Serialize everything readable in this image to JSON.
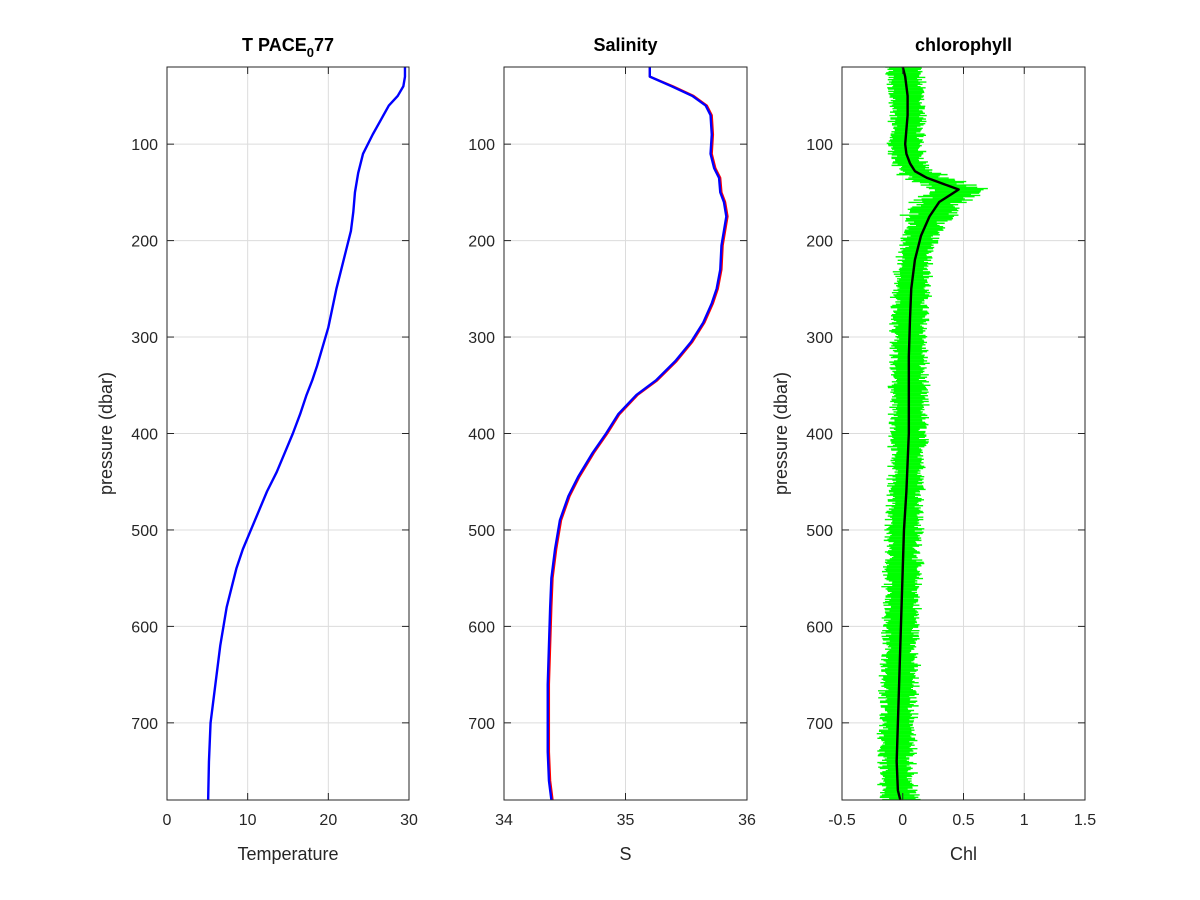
{
  "figure": {
    "background": "#ffffff"
  },
  "chart_data": [
    {
      "type": "line",
      "title": "T PACE",
      "title_subscript": "0",
      "title_suffix": "77",
      "xlabel": "Temperature",
      "ylabel": "pressure (dbar)",
      "xlim": [
        0,
        30
      ],
      "ylim": [
        780,
        20
      ],
      "y_reversed": true,
      "grid": true,
      "xticks": [
        0,
        10,
        20,
        30
      ],
      "xtick_labels": [
        "0",
        "10",
        "20",
        "30"
      ],
      "yticks": [
        100,
        200,
        300,
        400,
        500,
        600,
        700
      ],
      "ytick_labels": [
        "100",
        "200",
        "300",
        "400",
        "500",
        "600",
        "700"
      ],
      "series": [
        {
          "color": "#0000ff",
          "x": [
            29.5,
            29.5,
            29.3,
            28.6,
            27.5,
            26.5,
            25.5,
            24.3,
            23.7,
            23.3,
            23.1,
            22.8,
            22.2,
            21.6,
            21.0,
            20.5,
            20.0,
            19.3,
            18.6,
            18.0,
            17.3,
            16.5,
            15.6,
            14.6,
            13.6,
            12.4,
            11.4,
            10.4,
            9.4,
            8.6,
            8.0,
            7.4,
            7.0,
            6.6,
            6.3,
            6.0,
            5.7,
            5.4,
            5.2,
            5.1
          ],
          "y": [
            20,
            30,
            40,
            50,
            60,
            75,
            90,
            110,
            130,
            150,
            170,
            190,
            210,
            230,
            250,
            270,
            290,
            310,
            330,
            345,
            360,
            380,
            400,
            420,
            440,
            460,
            480,
            500,
            520,
            540,
            560,
            580,
            600,
            620,
            640,
            660,
            680,
            700,
            740,
            780
          ]
        }
      ]
    },
    {
      "type": "line",
      "title": "Salinity",
      "xlabel": "S",
      "ylabel": "",
      "xlim": [
        34,
        36
      ],
      "ylim": [
        780,
        20
      ],
      "y_reversed": true,
      "grid": true,
      "xticks": [
        34,
        35,
        36
      ],
      "xtick_labels": [
        "34",
        "35",
        "36"
      ],
      "yticks": [
        100,
        200,
        300,
        400,
        500,
        600,
        700
      ],
      "ytick_labels": [
        "100",
        "200",
        "300",
        "400",
        "500",
        "600",
        "700"
      ],
      "series": [
        {
          "color": "#ff0000",
          "x": [
            35.2,
            35.2,
            35.39,
            35.56,
            35.67,
            35.71,
            35.72,
            35.71,
            35.74,
            35.78,
            35.79,
            35.82,
            35.84,
            35.82,
            35.8,
            35.79,
            35.76,
            35.72,
            35.65,
            35.55,
            35.42,
            35.26,
            35.1,
            34.95,
            34.85,
            34.74,
            34.62,
            34.54,
            34.47,
            34.43,
            34.4,
            34.39,
            34.38,
            34.37,
            34.37,
            34.37,
            34.38,
            34.4
          ],
          "y": [
            20,
            30,
            40,
            50,
            60,
            70,
            90,
            110,
            125,
            135,
            150,
            160,
            175,
            190,
            205,
            230,
            250,
            265,
            285,
            305,
            325,
            345,
            360,
            380,
            400,
            420,
            445,
            465,
            490,
            520,
            550,
            580,
            620,
            660,
            700,
            730,
            760,
            780
          ]
        },
        {
          "color": "#0000ff",
          "x": [
            35.2,
            35.2,
            35.38,
            35.55,
            35.66,
            35.7,
            35.71,
            35.7,
            35.73,
            35.77,
            35.78,
            35.81,
            35.83,
            35.81,
            35.79,
            35.78,
            35.75,
            35.71,
            35.64,
            35.54,
            35.41,
            35.25,
            35.09,
            34.94,
            34.84,
            34.73,
            34.61,
            34.53,
            34.46,
            34.42,
            34.39,
            34.38,
            34.37,
            34.36,
            34.36,
            34.36,
            34.37,
            34.39
          ],
          "y": [
            20,
            30,
            40,
            50,
            60,
            70,
            90,
            110,
            125,
            135,
            150,
            160,
            175,
            190,
            205,
            230,
            250,
            265,
            285,
            305,
            325,
            345,
            360,
            380,
            400,
            420,
            445,
            465,
            490,
            520,
            550,
            580,
            620,
            660,
            700,
            730,
            760,
            780
          ]
        }
      ]
    },
    {
      "type": "line",
      "title": "chlorophyll",
      "xlabel": "Chl",
      "ylabel": "pressure (dbar)",
      "xlim": [
        -0.5,
        1.5
      ],
      "ylim": [
        780,
        20
      ],
      "y_reversed": true,
      "grid": true,
      "xticks": [
        -0.5,
        0,
        0.5,
        1,
        1.5
      ],
      "xtick_labels": [
        "-0.5",
        "0",
        "0.5",
        "1",
        "1.5"
      ],
      "yticks": [
        100,
        200,
        300,
        400,
        500,
        600,
        700
      ],
      "ytick_labels": [
        "100",
        "200",
        "300",
        "400",
        "500",
        "600",
        "700"
      ],
      "series": [
        {
          "color": "#00ff00",
          "x": [
            0.0,
            0.02,
            0.04,
            0.04,
            0.03,
            0.02,
            0.03,
            0.06,
            0.1,
            0.2,
            0.35,
            0.46,
            0.4,
            0.3,
            0.22,
            0.15,
            0.1,
            0.07,
            0.06,
            0.05,
            0.05,
            0.05,
            0.04,
            0.03,
            0.01,
            0.0,
            -0.01,
            -0.02,
            -0.03,
            -0.04,
            -0.05,
            -0.04,
            -0.02
          ],
          "y": [
            20,
            30,
            50,
            70,
            85,
            100,
            110,
            120,
            128,
            135,
            142,
            147,
            152,
            160,
            175,
            195,
            220,
            250,
            280,
            320,
            360,
            400,
            430,
            460,
            500,
            540,
            580,
            620,
            660,
            700,
            740,
            770,
            780
          ]
        },
        {
          "color": "#000000",
          "x": [
            0.0,
            0.02,
            0.04,
            0.04,
            0.03,
            0.02,
            0.03,
            0.06,
            0.1,
            0.2,
            0.35,
            0.46,
            0.4,
            0.3,
            0.22,
            0.15,
            0.1,
            0.07,
            0.06,
            0.05,
            0.05,
            0.05,
            0.04,
            0.03,
            0.01,
            0.0,
            -0.01,
            -0.02,
            -0.03,
            -0.04,
            -0.05,
            -0.04,
            -0.02
          ],
          "y": [
            20,
            30,
            50,
            70,
            85,
            100,
            110,
            120,
            128,
            135,
            142,
            147,
            152,
            160,
            175,
            195,
            220,
            250,
            280,
            320,
            360,
            400,
            430,
            460,
            500,
            540,
            580,
            620,
            660,
            700,
            740,
            770,
            780
          ]
        }
      ]
    }
  ]
}
